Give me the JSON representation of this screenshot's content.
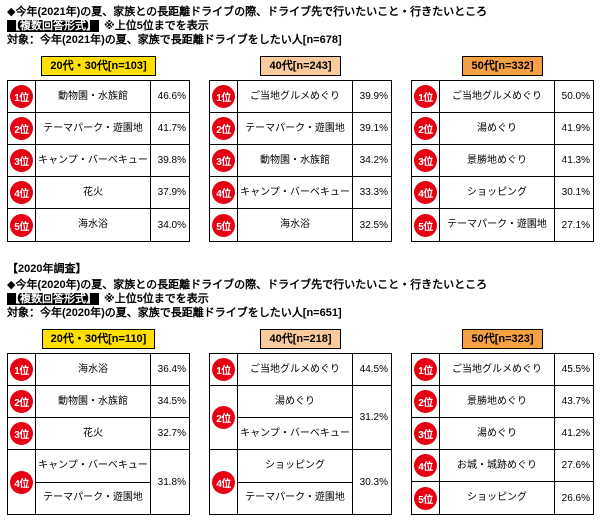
{
  "chart_data": {
    "type": "table",
    "accent_colors": {
      "rank_badge": "#e60012",
      "table_border": "#000000"
    },
    "sections": [
      {
        "title": "◆今年(2021年)の夏、家族との長距離ドライブの際、ドライブ先で行いたいこと・行きたいところ",
        "format_tag": "【複数回答形式】",
        "top5_note": "※上位5位までを表示",
        "target": "対象：今年(2021年)の夏、家族で長距離ドライブをしたい人[n=678]",
        "columns": [
          {
            "header": "20代・30代[n=103]",
            "header_bg": "#ffdf00",
            "rows": [
              {
                "rank": "1位",
                "items": [
                  "動物園・水族館"
                ],
                "pct": "46.6%"
              },
              {
                "rank": "2位",
                "items": [
                  "テーマパーク・遊園地"
                ],
                "pct": "41.7%"
              },
              {
                "rank": "3位",
                "items": [
                  "キャンプ・バーベキュー"
                ],
                "pct": "39.8%"
              },
              {
                "rank": "4位",
                "items": [
                  "花火"
                ],
                "pct": "37.9%"
              },
              {
                "rank": "5位",
                "items": [
                  "海水浴"
                ],
                "pct": "34.0%"
              }
            ]
          },
          {
            "header": "40代[n=243]",
            "header_bg": "#f9cb9c",
            "rows": [
              {
                "rank": "1位",
                "items": [
                  "ご当地グルメめぐり"
                ],
                "pct": "39.9%"
              },
              {
                "rank": "2位",
                "items": [
                  "テーマパーク・遊園地"
                ],
                "pct": "39.1%"
              },
              {
                "rank": "3位",
                "items": [
                  "動物園・水族館"
                ],
                "pct": "34.2%"
              },
              {
                "rank": "4位",
                "items": [
                  "キャンプ・バーベキュー"
                ],
                "pct": "33.3%"
              },
              {
                "rank": "5位",
                "items": [
                  "海水浴"
                ],
                "pct": "32.5%"
              }
            ]
          },
          {
            "header": "50代[n=332]",
            "header_bg": "#f5a142",
            "rows": [
              {
                "rank": "1位",
                "items": [
                  "ご当地グルメめぐり"
                ],
                "pct": "50.0%"
              },
              {
                "rank": "2位",
                "items": [
                  "湯めぐり"
                ],
                "pct": "41.9%"
              },
              {
                "rank": "3位",
                "items": [
                  "景勝地めぐり"
                ],
                "pct": "41.3%"
              },
              {
                "rank": "4位",
                "items": [
                  "ショッピング"
                ],
                "pct": "30.1%"
              },
              {
                "rank": "5位",
                "items": [
                  "テーマパーク・遊園地"
                ],
                "pct": "27.1%"
              }
            ]
          }
        ]
      },
      {
        "year_label": "【2020年調査】",
        "title": "◆今年(2020年)の夏、家族との長距離ドライブの際、ドライブ先で行いたいこと・行きたいところ",
        "format_tag": "【複数回答形式】",
        "top5_note": "※上位5位までを表示",
        "target": "対象：今年(2020年)の夏、家族で長距離ドライブをしたい人[n=651]",
        "columns": [
          {
            "header": "20代・30代[n=110]",
            "header_bg": "#ffdf00",
            "rows": [
              {
                "rank": "1位",
                "items": [
                  "海水浴"
                ],
                "pct": "36.4%"
              },
              {
                "rank": "2位",
                "items": [
                  "動物園・水族館"
                ],
                "pct": "34.5%"
              },
              {
                "rank": "3位",
                "items": [
                  "花火"
                ],
                "pct": "32.7%"
              },
              {
                "rank": "4位",
                "items": [
                  "キャンプ・バーベキュー",
                  "テーマパーク・遊園地"
                ],
                "pct": "31.8%"
              }
            ]
          },
          {
            "header": "40代[n=218]",
            "header_bg": "#f9cb9c",
            "rows": [
              {
                "rank": "1位",
                "items": [
                  "ご当地グルメめぐり"
                ],
                "pct": "44.5%"
              },
              {
                "rank": "2位",
                "items": [
                  "湯めぐり",
                  "キャンプ・バーベキュー"
                ],
                "pct": "31.2%"
              },
              {
                "rank": "4位",
                "items": [
                  "ショッピング",
                  "テーマパーク・遊園地"
                ],
                "pct": "30.3%"
              }
            ]
          },
          {
            "header": "50代[n=323]",
            "header_bg": "#f5a142",
            "rows": [
              {
                "rank": "1位",
                "items": [
                  "ご当地グルメめぐり"
                ],
                "pct": "45.5%"
              },
              {
                "rank": "2位",
                "items": [
                  "景勝地めぐり"
                ],
                "pct": "43.7%"
              },
              {
                "rank": "3位",
                "items": [
                  "湯めぐり"
                ],
                "pct": "41.2%"
              },
              {
                "rank": "4位",
                "items": [
                  "お城・城跡めぐり"
                ],
                "pct": "27.6%"
              },
              {
                "rank": "5位",
                "items": [
                  "ショッピング"
                ],
                "pct": "26.6%"
              }
            ]
          }
        ]
      }
    ]
  }
}
